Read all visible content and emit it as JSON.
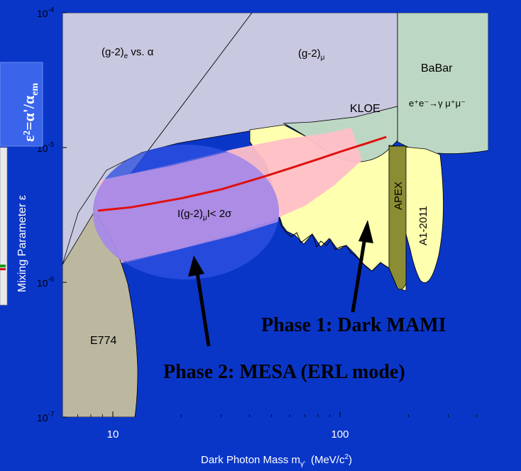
{
  "chart_data": {
    "type": "area",
    "title": "",
    "xlabel": "Dark Photon Mass   m",
    "xlabel_sub": "γ'",
    "xlabel_unit_pre": "(MeV/c",
    "xlabel_unit_sup": "2",
    "xlabel_unit_post": ")",
    "ylabel": "Mixing Parameter   ε",
    "xscale": "log",
    "yscale": "log",
    "xlim": [
      6,
      450
    ],
    "ylim": [
      1e-07,
      0.0001
    ],
    "x_ticks": [
      {
        "value": 10,
        "label": "10"
      },
      {
        "value": 100,
        "label": "100"
      }
    ],
    "y_ticks": [
      {
        "value": 0.0001,
        "base": "10",
        "exp": "-4"
      },
      {
        "value": 1e-05,
        "base": "10",
        "exp": "-5"
      },
      {
        "value": 1e-06,
        "base": "10",
        "exp": "-6"
      },
      {
        "value": 1e-07,
        "base": "10",
        "exp": "-7"
      }
    ],
    "regions": [
      {
        "name": "(g-2)e vs. α",
        "color": "#c8c8e0"
      },
      {
        "name": "(g-2)μ",
        "color": "#c8c8e0"
      },
      {
        "name": "BaBar",
        "color": "#bcd8c4"
      },
      {
        "name": "KLOE",
        "color": "#bcd8c4"
      },
      {
        "name": "E774",
        "color": "#bcb8a0"
      },
      {
        "name": "APEX",
        "color": "#8c8c34"
      },
      {
        "name": "A1-2011",
        "color": "#ffffb0"
      }
    ],
    "muon_band_curve": {
      "x": [
        8.6,
        12,
        20,
        30,
        45,
        60,
        80,
        100,
        130,
        160
      ],
      "y": [
        3.4e-06,
        3.6e-06,
        4.2e-06,
        4.9e-06,
        6e-06,
        7e-06,
        8.2e-06,
        9.3e-06,
        1.07e-05,
        1.2e-05
      ]
    },
    "annotations": {
      "g2e_main": "(g-2)",
      "g2e_sub": "e",
      "g2e_tail": " vs.  α",
      "g2mu_main": "(g-2)",
      "g2mu_sub": "μ",
      "babar": "BaBar",
      "babar_process": "e⁺e⁻→γ μ⁺μ⁻",
      "kloe": "KLOE",
      "apex": "APEX",
      "a1": "A1-2011",
      "e774": "E774",
      "sigma_pre": "I(g-2)",
      "sigma_sub": "μ",
      "sigma_post": "I< 2σ"
    }
  },
  "overlay": {
    "phase1": "Phase 1:  Dark MAMI",
    "phase2": "Phase 2:  MESA (ERL mode)",
    "eps_label": "ε²=α'/α",
    "eps_sub": "em"
  },
  "colors": {
    "background": "#0a36c8",
    "ellipse": "#2e50e0",
    "band": "#ffc0c8",
    "curve": "#e01010",
    "sensitivity": "#ffffb0"
  }
}
